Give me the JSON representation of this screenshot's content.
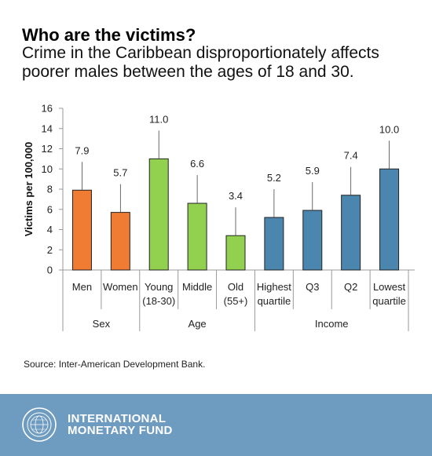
{
  "header": {
    "title": "Who are the victims?",
    "subtitle": "Crime in the Caribbean disproportionately affects poorer males between the ages of 18 and 30."
  },
  "chart_data": {
    "type": "bar",
    "ylabel": "Victims per 100,000",
    "ylim": [
      0,
      16
    ],
    "yticks": [
      0,
      2,
      4,
      6,
      8,
      10,
      12,
      14,
      16
    ],
    "grid": false,
    "categories": [
      {
        "lines": [
          "Men"
        ],
        "value": 7.9,
        "label": "7.9",
        "group": "Sex",
        "color": "#f07c33"
      },
      {
        "lines": [
          "Women"
        ],
        "value": 5.7,
        "label": "5.7",
        "group": "Sex",
        "color": "#f07c33"
      },
      {
        "lines": [
          "Young",
          "(18-30)"
        ],
        "value": 11.0,
        "label": "11.0",
        "group": "Age",
        "color": "#92d050"
      },
      {
        "lines": [
          "Middle"
        ],
        "value": 6.6,
        "label": "6.6",
        "group": "Age",
        "color": "#92d050"
      },
      {
        "lines": [
          "Old",
          "(55+)"
        ],
        "value": 3.4,
        "label": "3.4",
        "group": "Age",
        "color": "#92d050"
      },
      {
        "lines": [
          "Highest",
          "quartile"
        ],
        "value": 5.2,
        "label": "5.2",
        "group": "Income",
        "color": "#4a86ad"
      },
      {
        "lines": [
          "Q3"
        ],
        "value": 5.9,
        "label": "5.9",
        "group": "Income",
        "color": "#4a86ad"
      },
      {
        "lines": [
          "Q2"
        ],
        "value": 7.4,
        "label": "7.4",
        "group": "Income",
        "color": "#4a86ad"
      },
      {
        "lines": [
          "Lowest",
          "quartile"
        ],
        "value": 10.0,
        "label": "10.0",
        "group": "Income",
        "color": "#4a86ad"
      }
    ],
    "groups": [
      "Sex",
      "Age",
      "Income"
    ]
  },
  "source": "Source: Inter-American Development Bank.",
  "footer": {
    "org_line1": "INTERNATIONAL",
    "org_line2": "MONETARY FUND",
    "background": "#6e9bc0"
  }
}
